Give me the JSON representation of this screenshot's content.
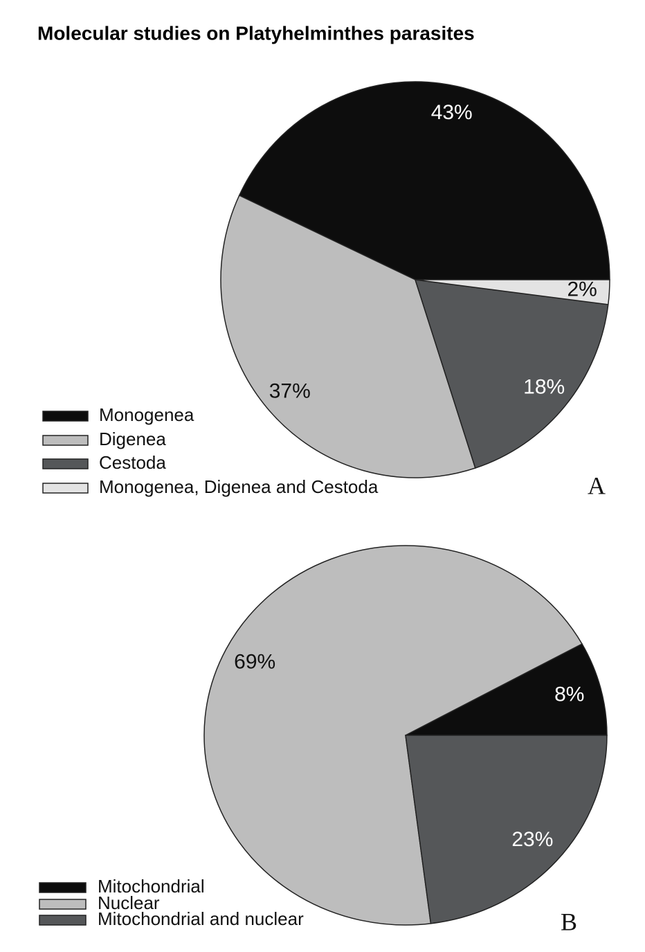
{
  "title": "Molecular studies on Platyhelminthes parasites",
  "chart_data": [
    {
      "type": "pie",
      "label": "A",
      "categories": [
        "Monogenea",
        "Digenea",
        "Cestoda",
        "Monogenea, Digenea and Cestoda"
      ],
      "values": [
        43,
        37,
        18,
        2
      ],
      "value_labels": [
        "43%",
        "37%",
        "18%",
        "2%"
      ],
      "colors": [
        "#0d0d0d",
        "#bdbdbd",
        "#555759",
        "#e3e3e3"
      ]
    },
    {
      "type": "pie",
      "label": "B",
      "categories": [
        "Mitochondrial",
        "Nuclear",
        "Mitochondrial and nuclear"
      ],
      "values": [
        8,
        69,
        23
      ],
      "value_labels": [
        "8%",
        "69%",
        "23%"
      ],
      "colors": [
        "#0d0d0d",
        "#bdbdbd",
        "#555759"
      ]
    }
  ]
}
